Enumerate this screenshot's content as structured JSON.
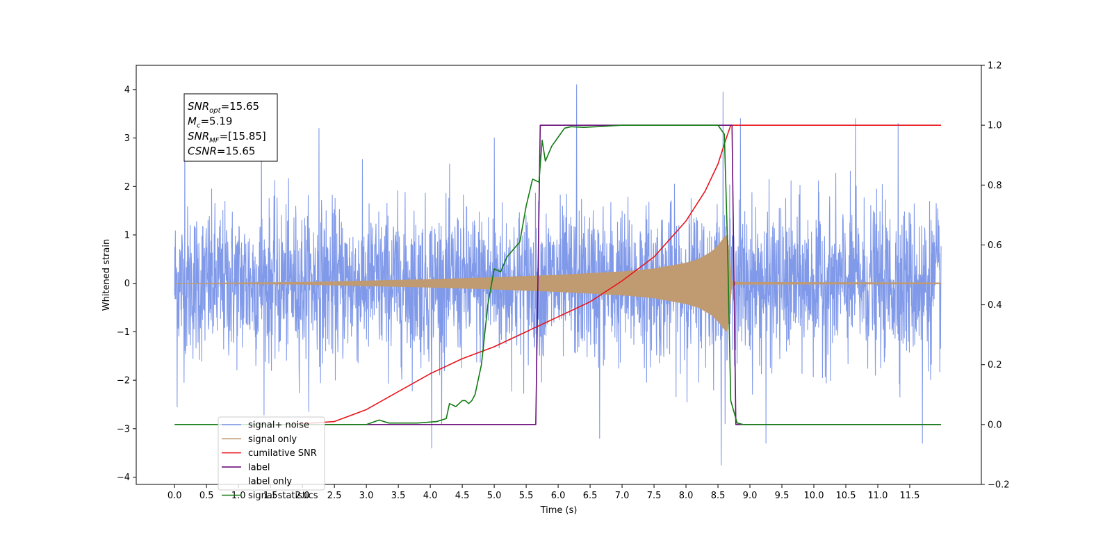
{
  "chart_data": {
    "type": "line",
    "xlabel": "Time (s)",
    "ylabel": "Whitened strain",
    "xlim": [
      -0.6,
      12.62
    ],
    "ylim": [
      -4.15,
      4.5
    ],
    "y2lim": [
      -0.2,
      1.2
    ],
    "x_ticks": [
      0.0,
      0.5,
      1.0,
      1.5,
      2.0,
      2.5,
      3.0,
      3.5,
      4.0,
      4.5,
      5.0,
      5.5,
      6.0,
      6.5,
      7.0,
      7.5,
      8.0,
      8.5,
      9.0,
      9.5,
      10.0,
      10.5,
      11.0,
      11.5
    ],
    "x_tick_labels": [
      "0.0",
      "0.5",
      "1.0",
      "1.5",
      "2.0",
      "2.5",
      "3.0",
      "3.5",
      "4.0",
      "4.5",
      "5.0",
      "5.5",
      "6.0",
      "6.5",
      "7.0",
      "7.5",
      "8.0",
      "8.5",
      "9.0",
      "9.5",
      "10.0",
      "10.5",
      "11.0",
      "11.5"
    ],
    "y_ticks": [
      -4,
      -3,
      -2,
      -1,
      0,
      1,
      2,
      3,
      4
    ],
    "y_tick_labels": [
      "−4",
      "−3",
      "−2",
      "−1",
      "0",
      "1",
      "2",
      "3",
      "4"
    ],
    "y2_ticks": [
      -0.2,
      0.0,
      0.2,
      0.4,
      0.6,
      0.8,
      1.0,
      1.2
    ],
    "y2_tick_labels": [
      "−0.2",
      "0.0",
      "0.2",
      "0.4",
      "0.6",
      "0.8",
      "1.0",
      "1.2"
    ],
    "grid": false,
    "legend_position": "lower-left",
    "annotation": {
      "lines": [
        {
          "main": "SNR",
          "sub": "opt",
          "rest": "=15.65"
        },
        {
          "main": "M",
          "sub": "c",
          "rest": "=5.19"
        },
        {
          "main": "SNR",
          "sub": "MF",
          "rest": "=[15.85]"
        },
        {
          "main": "CSNR",
          "sub": "",
          "rest": "=15.65"
        }
      ]
    },
    "series": [
      {
        "name": "signal+ noise",
        "color": "#7994e8",
        "axis": "left",
        "style": "noise",
        "x_range": [
          0.0,
          11.99
        ],
        "std": 0.78,
        "peaks": [
          [
            0.16,
            3.3
          ],
          [
            1.36,
            3.65
          ],
          [
            2.26,
            3.2
          ],
          [
            5.0,
            3.0
          ],
          [
            6.29,
            4.1
          ],
          [
            8.58,
            3.95
          ],
          [
            8.85,
            3.4
          ],
          [
            10.65,
            3.4
          ],
          [
            11.32,
            3.3
          ],
          [
            4.02,
            -3.4
          ],
          [
            8.55,
            -3.75
          ],
          [
            9.25,
            -3.3
          ],
          [
            11.7,
            -3.3
          ],
          [
            6.65,
            -3.2
          ],
          [
            0.04,
            -2.55
          ]
        ]
      },
      {
        "name": "signal only",
        "color": "#c09a70",
        "axis": "left",
        "style": "chirp",
        "x": [
          0.0,
          2.0,
          4.0,
          5.0,
          6.0,
          7.0,
          7.5,
          8.0,
          8.2,
          8.4,
          8.5,
          8.6,
          8.65,
          8.7,
          8.72,
          8.8,
          11.99
        ],
        "envelope": [
          0.0,
          0.02,
          0.08,
          0.12,
          0.17,
          0.24,
          0.3,
          0.42,
          0.5,
          0.65,
          0.78,
          0.95,
          1.0,
          0.3,
          0.05,
          0.02,
          0.01
        ]
      },
      {
        "name": "cumilative SNR",
        "color": "#e8141b",
        "axis": "right",
        "x": [
          1.8,
          2.5,
          3.0,
          3.5,
          4.0,
          4.5,
          5.0,
          5.5,
          6.0,
          6.5,
          7.0,
          7.5,
          8.0,
          8.3,
          8.5,
          8.62,
          8.7,
          8.72,
          11.99
        ],
        "values": [
          0.0,
          0.01,
          0.05,
          0.11,
          0.17,
          0.22,
          0.26,
          0.31,
          0.36,
          0.41,
          0.48,
          0.56,
          0.68,
          0.78,
          0.87,
          0.95,
          1.0,
          1.0,
          1.0
        ]
      },
      {
        "name": "label",
        "color": "#6b0f7a",
        "axis": "right",
        "x": [
          1.8,
          5.65,
          5.72,
          8.72,
          8.78,
          11.99
        ],
        "values": [
          0.0,
          0.0,
          1.0,
          1.0,
          0.0,
          0.0
        ]
      },
      {
        "name": "label only",
        "color": "#ffffff",
        "axis": "right",
        "legend_only": true,
        "x": [],
        "values": []
      },
      {
        "name": "signal statistics",
        "color": "#117a11",
        "axis": "right",
        "x": [
          0.0,
          3.0,
          3.2,
          3.35,
          3.8,
          4.1,
          4.25,
          4.3,
          4.4,
          4.5,
          4.55,
          4.6,
          4.65,
          4.7,
          4.8,
          4.9,
          5.0,
          5.1,
          5.2,
          5.4,
          5.5,
          5.6,
          5.7,
          5.75,
          5.8,
          5.9,
          6.0,
          6.1,
          6.2,
          6.4,
          6.6,
          7.0,
          7.5,
          8.0,
          8.5,
          8.6,
          8.65,
          8.7,
          8.8,
          8.9,
          11.99
        ],
        "values": [
          0.0,
          0.0,
          0.015,
          0.005,
          0.005,
          0.01,
          0.02,
          0.07,
          0.06,
          0.08,
          0.08,
          0.07,
          0.08,
          0.1,
          0.2,
          0.4,
          0.52,
          0.51,
          0.56,
          0.61,
          0.73,
          0.82,
          0.81,
          0.95,
          0.88,
          0.93,
          0.96,
          0.99,
          0.995,
          0.993,
          0.995,
          1.0,
          1.0,
          1.0,
          1.0,
          0.97,
          0.6,
          0.08,
          0.005,
          0.0,
          0.0
        ]
      }
    ]
  }
}
